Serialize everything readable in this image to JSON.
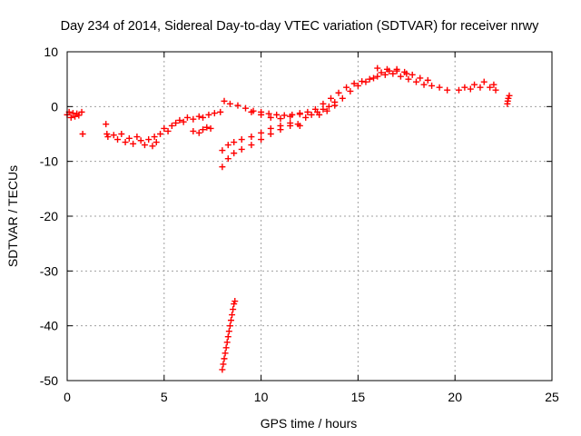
{
  "chart_data": {
    "type": "scatter",
    "title": "Day 234 of 2014, Sidereal Day-to-day VTEC variation (SDTVAR) for receiver nrwy",
    "xlabel": "GPS time / hours",
    "ylabel": "SDTVAR / TECUs",
    "xlim": [
      0,
      25
    ],
    "ylim": [
      -50,
      10
    ],
    "xticks": [
      0,
      5,
      10,
      15,
      20,
      25
    ],
    "yticks": [
      -50,
      -40,
      -30,
      -20,
      -10,
      0,
      10
    ],
    "grid": true,
    "marker": "plus",
    "colors": {
      "points": "#ff0000",
      "grid": "#a0a0a0",
      "axes": "#000000"
    },
    "series": [
      {
        "name": "SDTVAR",
        "points": [
          [
            0.0,
            -1.5
          ],
          [
            0.1,
            -1.0
          ],
          [
            0.2,
            -2.0
          ],
          [
            0.3,
            -1.2
          ],
          [
            0.4,
            -1.8
          ],
          [
            0.5,
            -1.3
          ],
          [
            0.6,
            -1.6
          ],
          [
            0.75,
            -1.0
          ],
          [
            0.8,
            -5.0
          ],
          [
            2.0,
            -3.2
          ],
          [
            2.05,
            -5.0
          ],
          [
            2.1,
            -5.5
          ],
          [
            2.4,
            -5.2
          ],
          [
            2.6,
            -6.0
          ],
          [
            2.8,
            -5.0
          ],
          [
            3.0,
            -6.5
          ],
          [
            3.2,
            -5.8
          ],
          [
            3.4,
            -6.8
          ],
          [
            3.6,
            -5.5
          ],
          [
            3.8,
            -6.2
          ],
          [
            4.0,
            -7.0
          ],
          [
            4.2,
            -6.0
          ],
          [
            4.4,
            -7.2
          ],
          [
            4.5,
            -5.5
          ],
          [
            4.6,
            -6.5
          ],
          [
            4.8,
            -5.0
          ],
          [
            5.0,
            -4.0
          ],
          [
            5.2,
            -4.5
          ],
          [
            5.4,
            -3.5
          ],
          [
            5.6,
            -3.0
          ],
          [
            5.8,
            -2.5
          ],
          [
            6.0,
            -2.8
          ],
          [
            6.2,
            -2.0
          ],
          [
            6.5,
            -2.3
          ],
          [
            6.8,
            -1.8
          ],
          [
            7.0,
            -2.0
          ],
          [
            7.3,
            -1.5
          ],
          [
            7.6,
            -1.2
          ],
          [
            7.9,
            -1.0
          ],
          [
            6.5,
            -4.5
          ],
          [
            6.8,
            -4.8
          ],
          [
            7.0,
            -4.2
          ],
          [
            7.2,
            -3.8
          ],
          [
            7.4,
            -4.0
          ],
          [
            8.1,
            1.0
          ],
          [
            8.4,
            0.5
          ],
          [
            8.8,
            0.2
          ],
          [
            9.2,
            -0.3
          ],
          [
            9.6,
            -0.8
          ],
          [
            10.0,
            -1.0
          ],
          [
            10.4,
            -1.3
          ],
          [
            10.8,
            -1.5
          ],
          [
            11.2,
            -1.6
          ],
          [
            11.6,
            -1.5
          ],
          [
            12.0,
            -1.4
          ],
          [
            12.4,
            -1.0
          ],
          [
            12.8,
            -0.5
          ],
          [
            13.2,
            0.5
          ],
          [
            13.6,
            1.5
          ],
          [
            14.0,
            2.5
          ],
          [
            14.4,
            3.5
          ],
          [
            14.8,
            4.2
          ],
          [
            15.2,
            4.6
          ],
          [
            15.6,
            5.0
          ],
          [
            16.0,
            5.5
          ],
          [
            16.4,
            5.8
          ],
          [
            16.8,
            6.0
          ],
          [
            17.2,
            5.5
          ],
          [
            17.6,
            5.0
          ],
          [
            18.0,
            4.5
          ],
          [
            18.4,
            4.0
          ],
          [
            18.8,
            3.8
          ],
          [
            19.2,
            3.5
          ],
          [
            19.6,
            3.0
          ],
          [
            13.0,
            -1.5
          ],
          [
            13.4,
            -0.8
          ],
          [
            13.8,
            0.2
          ],
          [
            14.2,
            1.5
          ],
          [
            14.6,
            2.8
          ],
          [
            15.0,
            3.8
          ],
          [
            15.4,
            4.5
          ],
          [
            15.8,
            5.2
          ],
          [
            16.2,
            6.2
          ],
          [
            16.6,
            6.5
          ],
          [
            17.0,
            6.8
          ],
          [
            17.4,
            6.3
          ],
          [
            17.8,
            5.8
          ],
          [
            18.2,
            5.2
          ],
          [
            18.6,
            4.8
          ],
          [
            16.0,
            7.0
          ],
          [
            16.5,
            6.8
          ],
          [
            17.0,
            6.5
          ],
          [
            17.5,
            6.0
          ],
          [
            8.0,
            -8.0
          ],
          [
            8.3,
            -7.0
          ],
          [
            8.6,
            -6.5
          ],
          [
            9.0,
            -6.0
          ],
          [
            9.5,
            -5.5
          ],
          [
            10.0,
            -4.8
          ],
          [
            10.5,
            -4.0
          ],
          [
            11.0,
            -3.5
          ],
          [
            11.5,
            -3.0
          ],
          [
            12.0,
            -3.5
          ],
          [
            8.0,
            -11.0
          ],
          [
            8.3,
            -9.5
          ],
          [
            8.6,
            -8.5
          ],
          [
            9.0,
            -7.8
          ],
          [
            9.5,
            -7.0
          ],
          [
            10.0,
            -6.0
          ],
          [
            10.5,
            -5.0
          ],
          [
            11.0,
            -4.2
          ],
          [
            11.5,
            -3.5
          ],
          [
            11.9,
            -3.2
          ],
          [
            9.5,
            -1.0
          ],
          [
            10.0,
            -1.5
          ],
          [
            10.5,
            -2.0
          ],
          [
            11.0,
            -2.2
          ],
          [
            11.5,
            -1.8
          ],
          [
            12.0,
            -1.2
          ],
          [
            12.3,
            -2.0
          ],
          [
            12.6,
            -1.5
          ],
          [
            12.9,
            -1.0
          ],
          [
            13.2,
            -0.5
          ],
          [
            13.5,
            0.0
          ],
          [
            13.8,
            0.8
          ],
          [
            20.2,
            3.0
          ],
          [
            20.5,
            3.5
          ],
          [
            20.8,
            3.2
          ],
          [
            21.0,
            4.0
          ],
          [
            21.3,
            3.5
          ],
          [
            21.5,
            4.5
          ],
          [
            21.8,
            3.5
          ],
          [
            22.0,
            4.0
          ],
          [
            22.1,
            3.0
          ],
          [
            22.7,
            0.5
          ],
          [
            22.75,
            1.5
          ],
          [
            22.8,
            2.0
          ],
          [
            22.72,
            1.0
          ],
          [
            8.0,
            -48.0
          ],
          [
            8.05,
            -47.0
          ],
          [
            8.1,
            -46.0
          ],
          [
            8.15,
            -45.0
          ],
          [
            8.2,
            -44.0
          ],
          [
            8.25,
            -43.0
          ],
          [
            8.3,
            -42.0
          ],
          [
            8.35,
            -41.0
          ],
          [
            8.4,
            -40.0
          ],
          [
            8.45,
            -39.0
          ],
          [
            8.5,
            -38.0
          ],
          [
            8.55,
            -37.0
          ],
          [
            8.6,
            -36.0
          ],
          [
            8.65,
            -35.5
          ]
        ]
      }
    ]
  }
}
